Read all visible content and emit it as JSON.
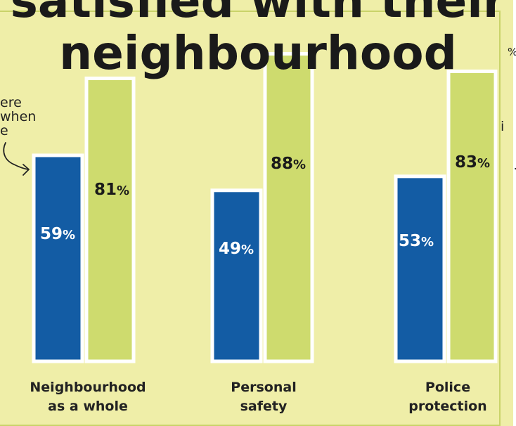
{
  "title_lines": [
    "satisfied with their",
    "neighbourhood"
  ],
  "notes": {
    "left": [
      "ere",
      "when",
      "e"
    ],
    "right_top": "%",
    "right_mid": "i"
  },
  "colors": {
    "series_1": "#135ca4",
    "series_2": "#cedb6e",
    "background": "#efeea8",
    "bar_outline": "#ffffff"
  },
  "chart_data": {
    "type": "bar",
    "title": "satisfied with their neighbourhood",
    "categories": [
      "Neighbourhood as a whole",
      "Personal safety",
      "Police protection"
    ],
    "category_lines": [
      [
        "Neighbourhood",
        "as a whole"
      ],
      [
        "Personal",
        "safety"
      ],
      [
        "Police",
        "protection"
      ]
    ],
    "series": [
      {
        "values": [
          59,
          49,
          53
        ],
        "labels": [
          "59%",
          "49%",
          "53%"
        ]
      },
      {
        "values": [
          81,
          88,
          83
        ],
        "labels": [
          "81%",
          "88%",
          "83%"
        ]
      }
    ],
    "ylim": [
      0,
      100
    ],
    "grid": false,
    "xlabel": "",
    "ylabel": ""
  }
}
